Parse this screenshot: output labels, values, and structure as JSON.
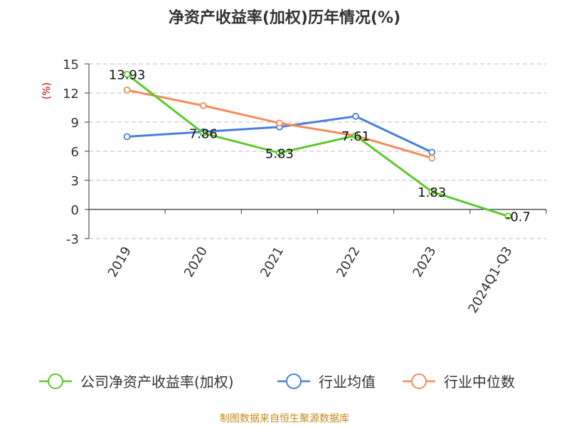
{
  "chart_data": {
    "type": "line",
    "title": "净资产收益率(加权)历年情况(%)",
    "ylabel": "(%)",
    "xlabel": "",
    "categories": [
      "2019",
      "2020",
      "2021",
      "2022",
      "2023",
      "2024Q1-Q3"
    ],
    "ylim": [
      -3,
      15
    ],
    "yticks": [
      15,
      12,
      9,
      6,
      3,
      0,
      -3
    ],
    "grid": true,
    "legend_position": "bottom",
    "series": [
      {
        "name": "公司净资产收益率(加权)",
        "color": "#5cc92c",
        "values": [
          13.93,
          7.86,
          5.83,
          7.61,
          1.83,
          -0.7
        ],
        "labels": [
          "13.93",
          "7.86",
          "5.83",
          "7.61",
          "1.83",
          "-0.7"
        ]
      },
      {
        "name": "行业均值",
        "color": "#4a7fd8",
        "values": [
          7.5,
          8.0,
          8.5,
          9.6,
          5.9,
          null
        ]
      },
      {
        "name": "行业中位数",
        "color": "#f48c5c",
        "values": [
          12.3,
          10.7,
          8.9,
          7.6,
          5.3,
          null
        ]
      }
    ]
  },
  "footer": {
    "source": "制图数据来自恒生聚源数据库"
  }
}
